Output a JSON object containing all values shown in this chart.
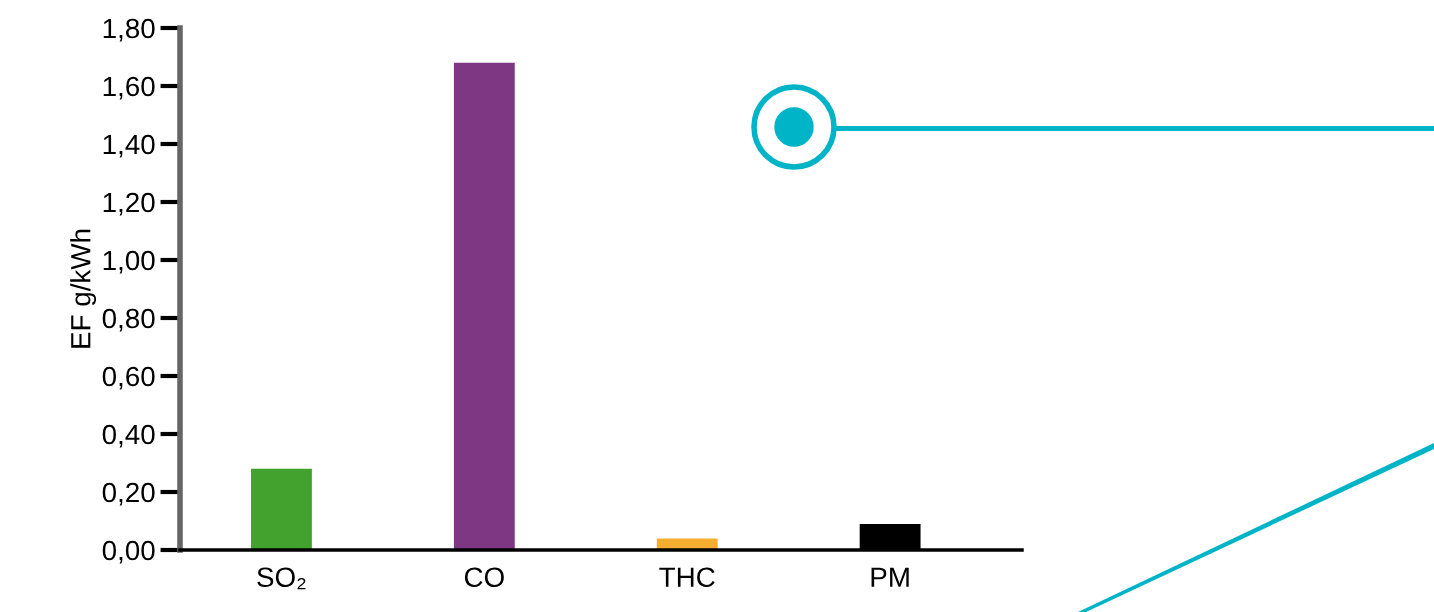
{
  "chart_data": {
    "type": "bar",
    "ylabel": "EF g/kWh",
    "categories": [
      "SO₂",
      "CO",
      "THC",
      "PM"
    ],
    "values": [
      0.28,
      1.68,
      0.04,
      0.09
    ],
    "colors": [
      "#43a22e",
      "#7e3783",
      "#f5ae30",
      "#000000"
    ],
    "ylim": [
      0,
      1.8
    ],
    "yticks": [
      {
        "value": 0,
        "label": "0,00"
      },
      {
        "value": 0.2,
        "label": "0,20"
      },
      {
        "value": 0.4,
        "label": "0,40"
      },
      {
        "value": 0.6,
        "label": "0,60"
      },
      {
        "value": 0.8,
        "label": "0,80"
      },
      {
        "value": 1.0,
        "label": "1,00"
      },
      {
        "value": 1.2,
        "label": "1,20"
      },
      {
        "value": 1.4,
        "label": "1,40"
      },
      {
        "value": 1.6,
        "label": "1,60"
      },
      {
        "value": 1.8,
        "label": "1,80"
      }
    ],
    "grid": false
  }
}
